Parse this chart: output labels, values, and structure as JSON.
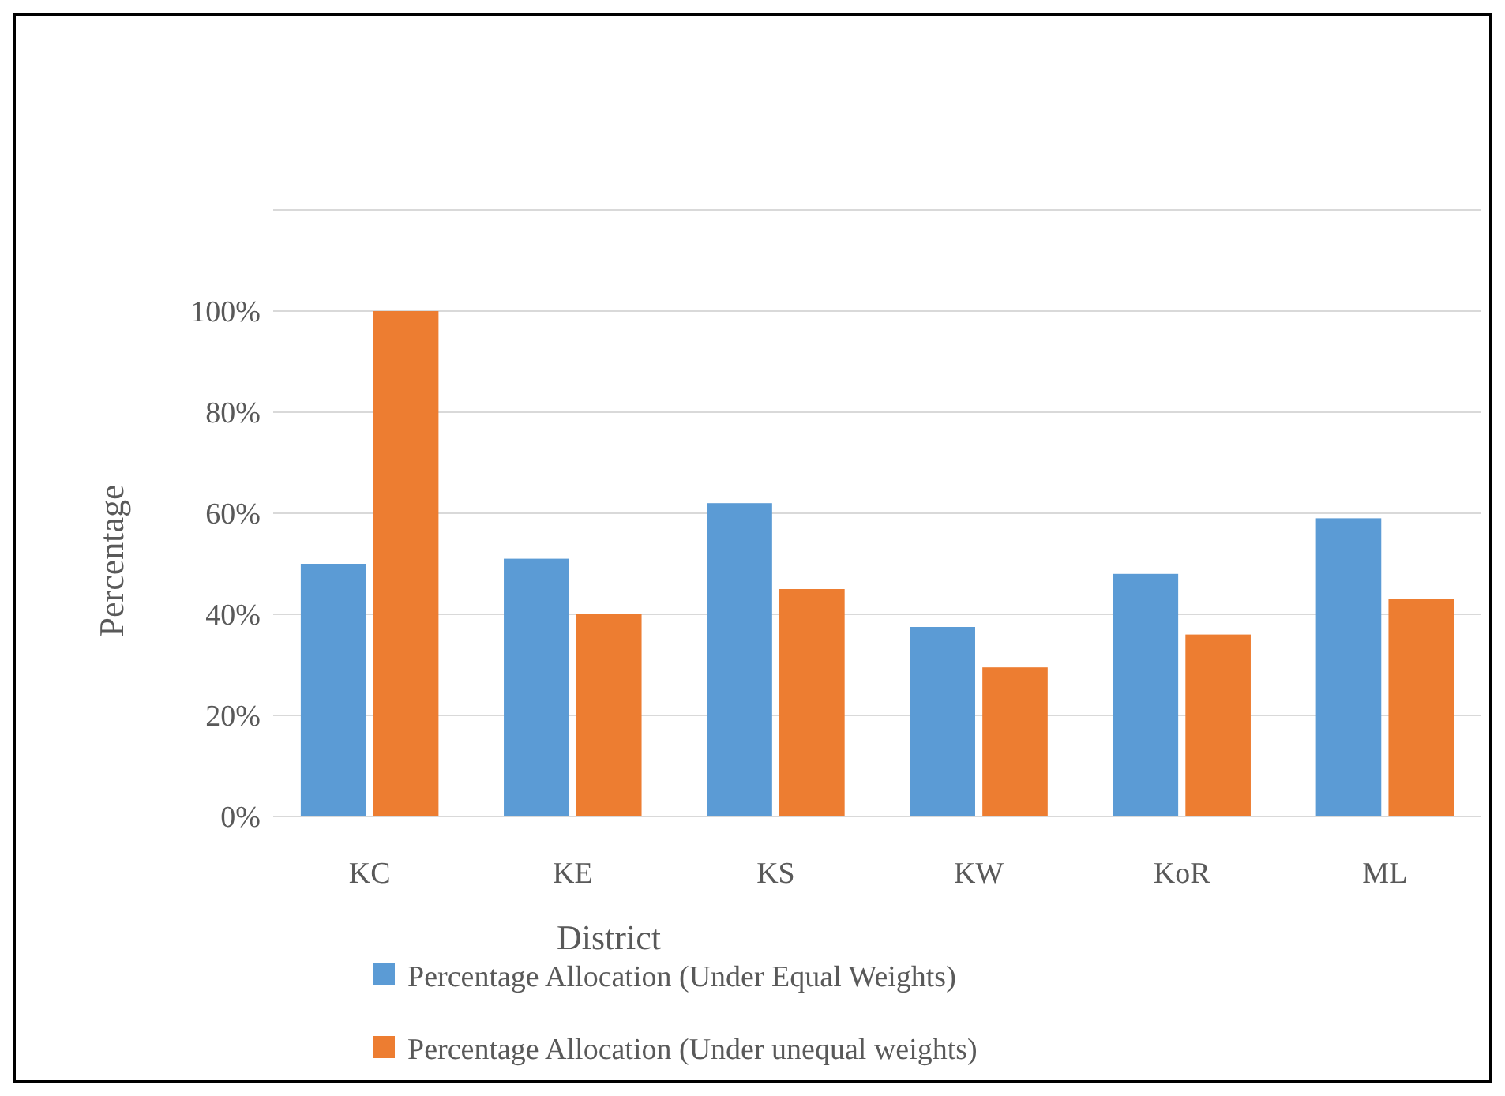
{
  "chart_data": {
    "type": "bar",
    "xlabel": "District",
    "ylabel": "Percentage",
    "categories": [
      "KC",
      "KE",
      "KS",
      "KW",
      "KoR",
      "ML"
    ],
    "series": [
      {
        "name": "Percentage Allocation (Under Equal Weights)",
        "color": "#5b9bd5",
        "values": [
          50,
          51,
          62,
          37.5,
          48,
          59
        ]
      },
      {
        "name": "Percentage Allocation (Under unequal weights)",
        "color": "#ed7d31",
        "values": [
          100,
          40,
          45,
          29.5,
          36,
          43
        ]
      }
    ],
    "ylim": [
      0,
      120
    ],
    "yticks": [
      {
        "value": 0,
        "label": "0%"
      },
      {
        "value": 20,
        "label": "20%"
      },
      {
        "value": 40,
        "label": "40%"
      },
      {
        "value": 60,
        "label": "60%"
      },
      {
        "value": 80,
        "label": "80%"
      },
      {
        "value": 100,
        "label": "100%"
      },
      {
        "value": 120,
        "label": null
      }
    ],
    "grid": "y",
    "legend": "bottom"
  }
}
